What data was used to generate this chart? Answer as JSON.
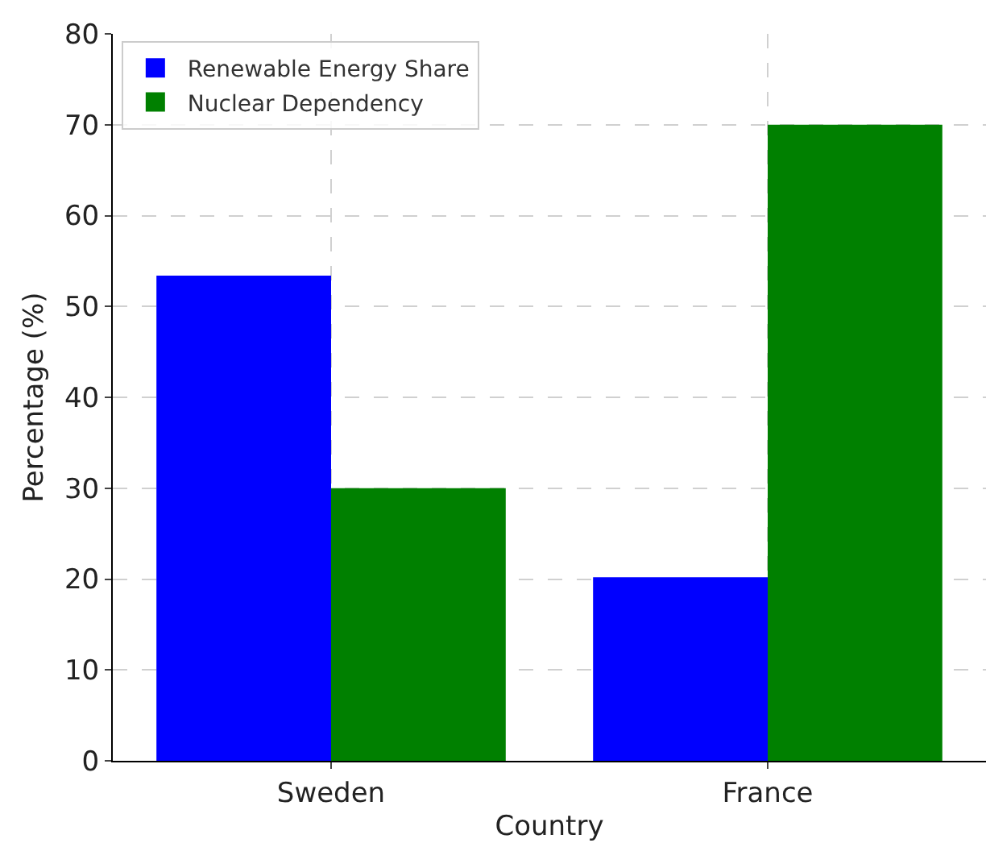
{
  "chart_data": {
    "type": "bar",
    "xlabel": "Country",
    "ylabel": "Percentage (%)",
    "categories": [
      "Sweden",
      "France"
    ],
    "series": [
      {
        "name": "Renewable Energy Share",
        "color": "#0000ff",
        "values": [
          53.4,
          20.2
        ]
      },
      {
        "name": "Nuclear Dependency",
        "color": "#008000",
        "values": [
          30,
          70
        ]
      }
    ],
    "ylim": [
      0,
      80
    ],
    "yticks": [
      0,
      10,
      20,
      30,
      40,
      50,
      60,
      70,
      80
    ],
    "grid": true,
    "legend": "top left"
  }
}
